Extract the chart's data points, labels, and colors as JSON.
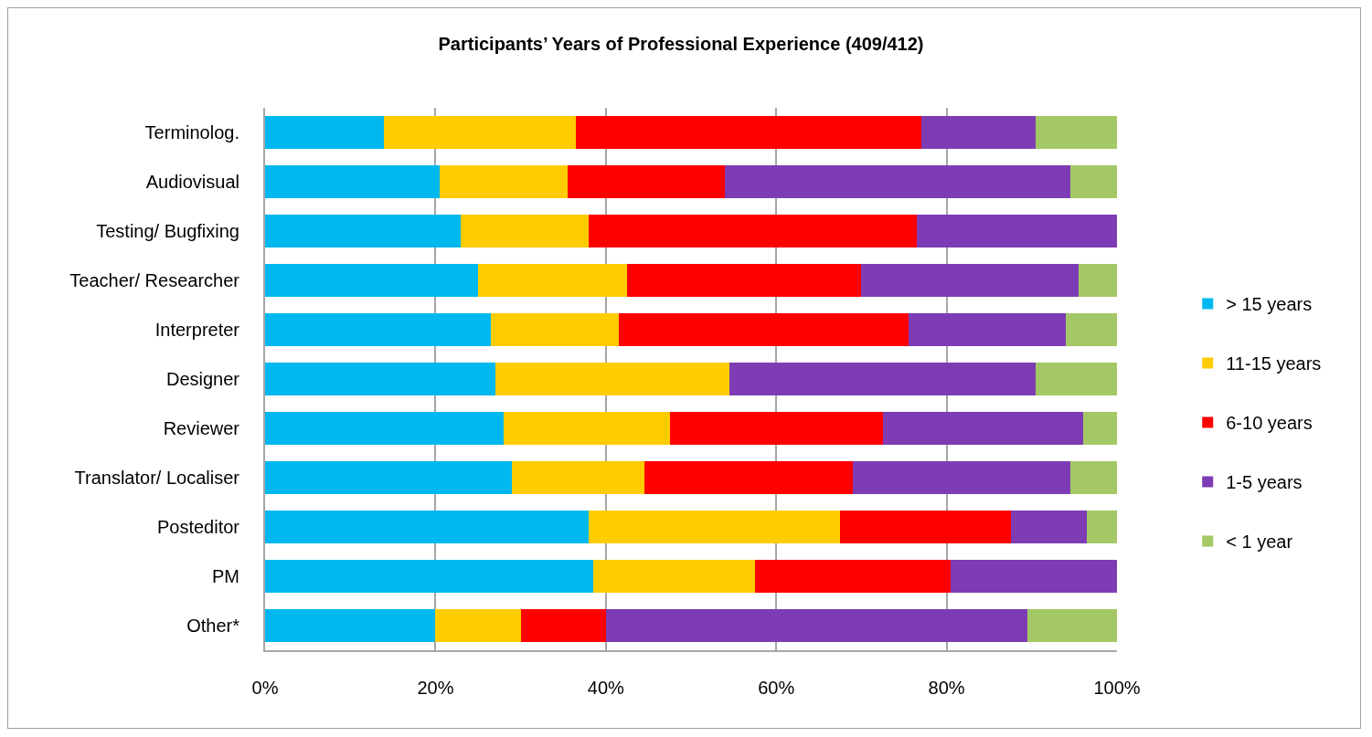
{
  "chart_data": {
    "type": "bar",
    "orientation": "horizontal",
    "stacked": true,
    "title": "Participants’ Years of Professional Experience (409/412)",
    "categories": [
      "Terminolog.",
      "Audiovisual",
      "Testing/ Bugfixing",
      "Teacher/ Researcher",
      "Interpreter",
      "Designer",
      "Reviewer",
      "Translator/ Localiser",
      "Posteditor",
      "PM",
      "Other*"
    ],
    "series": [
      {
        "name": "> 15 years",
        "color": "#00b8f0",
        "values": [
          14,
          20.5,
          23,
          25,
          26.5,
          27,
          28,
          29,
          38,
          38.5,
          20
        ]
      },
      {
        "name": "11-15 years",
        "color": "#ffcc00",
        "values": [
          22.5,
          15,
          15,
          17.5,
          15,
          27.5,
          19.5,
          15.5,
          29.5,
          19,
          10
        ]
      },
      {
        "name": "6-10 years",
        "color": "#ff0000",
        "values": [
          40.5,
          18.5,
          38.5,
          27.5,
          34,
          0,
          25,
          24.5,
          20,
          23,
          10
        ]
      },
      {
        "name": "1-5 years",
        "color": "#7e3cb4",
        "values": [
          13.5,
          40.5,
          23.5,
          25.5,
          18.5,
          36,
          23.5,
          25.5,
          9,
          19.5,
          49.5
        ]
      },
      {
        "name": "< 1 year",
        "color": "#a4c866",
        "values": [
          9.5,
          5.5,
          0,
          4.5,
          6,
          9.5,
          4,
          5.5,
          3.5,
          0,
          10.5
        ]
      }
    ],
    "xlim": [
      0,
      100
    ],
    "xticks": [
      {
        "value": 0,
        "label": "0%"
      },
      {
        "value": 20,
        "label": "20%"
      },
      {
        "value": 40,
        "label": "40%"
      },
      {
        "value": 60,
        "label": "60%"
      },
      {
        "value": 80,
        "label": "80%"
      },
      {
        "value": 100,
        "label": "100%"
      }
    ],
    "grid": "x",
    "legend": "right"
  }
}
